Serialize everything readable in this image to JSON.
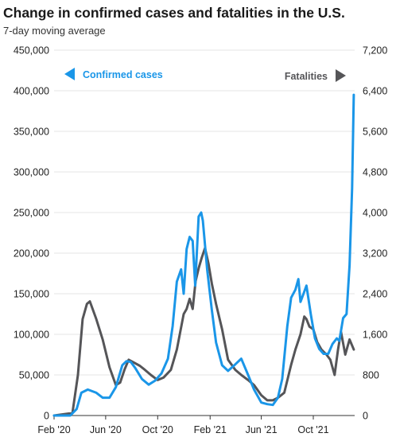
{
  "chart_data": {
    "type": "line",
    "title": "Change in confirmed cases and fatalities in the U.S.",
    "subtitle": "7-day moving average",
    "x_tick_labels": [
      "Feb '20",
      "Jun '20",
      "Oct '20",
      "Feb '21",
      "Jun '21",
      "Oct '21"
    ],
    "left_axis": {
      "ylim": [
        0,
        450000
      ],
      "ticks": [
        0,
        50000,
        100000,
        150000,
        200000,
        250000,
        300000,
        350000,
        400000,
        450000
      ],
      "tick_labels": [
        "0",
        "50,000",
        "100,000",
        "150,000",
        "200,000",
        "250,000",
        "300,000",
        "350,000",
        "400,000",
        "450,000"
      ]
    },
    "right_axis": {
      "ylim": [
        0,
        7200
      ],
      "ticks": [
        0,
        800,
        1600,
        2400,
        3200,
        4000,
        4800,
        5600,
        6400,
        7200
      ],
      "tick_labels": [
        "0",
        "800",
        "1,600",
        "2,400",
        "3,200",
        "4,000",
        "4,800",
        "5,600",
        "6,400",
        "7,200"
      ]
    },
    "grid": true,
    "legend": [
      {
        "name": "Confirmed cases",
        "axis": "left",
        "arrow": "left",
        "placement": "top-left",
        "color": "#1a96e8"
      },
      {
        "name": "Fatalities",
        "axis": "right",
        "arrow": "right",
        "placement": "top-right",
        "color": "#555558"
      }
    ],
    "series": [
      {
        "name": "Confirmed cases",
        "axis": "left",
        "color": "#1a96e8",
        "x": [
          "2020-02-01",
          "2020-03-10",
          "2020-03-25",
          "2020-04-05",
          "2020-04-20",
          "2020-05-10",
          "2020-05-25",
          "2020-06-10",
          "2020-06-25",
          "2020-07-10",
          "2020-07-20",
          "2020-07-30",
          "2020-08-10",
          "2020-08-25",
          "2020-09-10",
          "2020-09-25",
          "2020-10-10",
          "2020-10-25",
          "2020-11-05",
          "2020-11-15",
          "2020-11-25",
          "2020-12-01",
          "2020-12-08",
          "2020-12-15",
          "2020-12-22",
          "2020-12-28",
          "2021-01-05",
          "2021-01-11",
          "2021-01-15",
          "2021-01-25",
          "2021-02-05",
          "2021-02-15",
          "2021-03-01",
          "2021-03-15",
          "2021-04-01",
          "2021-04-15",
          "2021-05-01",
          "2021-05-15",
          "2021-06-01",
          "2021-06-15",
          "2021-06-28",
          "2021-07-10",
          "2021-07-20",
          "2021-08-01",
          "2021-08-10",
          "2021-08-20",
          "2021-08-27",
          "2021-09-01",
          "2021-09-08",
          "2021-09-15",
          "2021-09-25",
          "2021-10-05",
          "2021-10-15",
          "2021-10-25",
          "2021-11-05",
          "2021-11-15",
          "2021-11-25",
          "2021-12-01",
          "2021-12-10",
          "2021-12-18",
          "2021-12-25",
          "2021-12-31",
          "2022-01-04"
        ],
        "y": [
          0,
          0,
          8000,
          28000,
          32000,
          28000,
          22000,
          22000,
          35000,
          62000,
          67000,
          66000,
          58000,
          45000,
          38000,
          43000,
          52000,
          70000,
          110000,
          165000,
          180000,
          150000,
          205000,
          220000,
          215000,
          160000,
          245000,
          250000,
          240000,
          180000,
          130000,
          90000,
          62000,
          55000,
          63000,
          70000,
          50000,
          32000,
          16000,
          14000,
          13000,
          22000,
          45000,
          110000,
          145000,
          155000,
          168000,
          140000,
          150000,
          160000,
          125000,
          95000,
          82000,
          76000,
          76000,
          88000,
          95000,
          92000,
          120000,
          125000,
          185000,
          280000,
          395000
        ]
      },
      {
        "name": "Fatalities",
        "axis": "right",
        "color": "#555558",
        "x": [
          "2020-02-01",
          "2020-03-15",
          "2020-03-28",
          "2020-04-08",
          "2020-04-18",
          "2020-04-25",
          "2020-05-10",
          "2020-05-25",
          "2020-06-10",
          "2020-06-25",
          "2020-07-05",
          "2020-07-15",
          "2020-07-25",
          "2020-08-05",
          "2020-08-20",
          "2020-09-01",
          "2020-09-15",
          "2020-10-01",
          "2020-10-15",
          "2020-11-01",
          "2020-11-15",
          "2020-12-01",
          "2020-12-08",
          "2020-12-15",
          "2020-12-22",
          "2020-12-29",
          "2021-01-05",
          "2021-01-12",
          "2021-01-20",
          "2021-01-28",
          "2021-02-05",
          "2021-02-15",
          "2021-03-01",
          "2021-03-15",
          "2021-04-01",
          "2021-04-15",
          "2021-05-01",
          "2021-05-15",
          "2021-06-01",
          "2021-06-15",
          "2021-06-28",
          "2021-07-10",
          "2021-07-25",
          "2021-08-10",
          "2021-08-20",
          "2021-09-01",
          "2021-09-10",
          "2021-09-15",
          "2021-09-22",
          "2021-10-01",
          "2021-10-10",
          "2021-10-20",
          "2021-11-01",
          "2021-11-10",
          "2021-11-20",
          "2021-11-28",
          "2021-12-05",
          "2021-12-15",
          "2021-12-25",
          "2022-01-04"
        ],
        "y": [
          0,
          50,
          800,
          1900,
          2200,
          2250,
          1900,
          1500,
          950,
          600,
          650,
          900,
          1100,
          1050,
          980,
          900,
          800,
          700,
          750,
          900,
          1300,
          2000,
          2100,
          2300,
          2100,
          2650,
          2900,
          3100,
          3300,
          3000,
          2600,
          2200,
          1700,
          1100,
          900,
          800,
          700,
          600,
          400,
          300,
          300,
          350,
          450,
          1000,
          1300,
          1600,
          1950,
          1900,
          1750,
          1700,
          1450,
          1300,
          1200,
          1100,
          800,
          1300,
          1650,
          1200,
          1500,
          1300
        ]
      }
    ]
  }
}
